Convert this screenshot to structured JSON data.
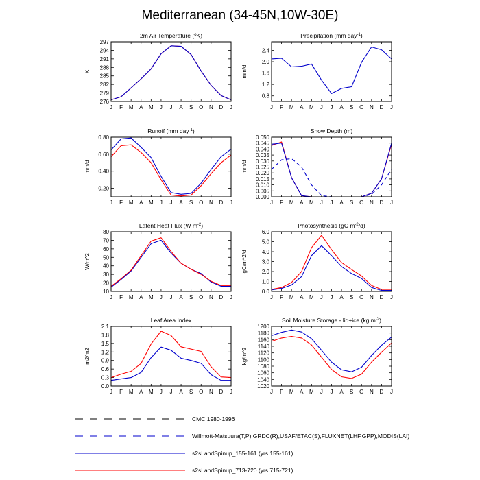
{
  "page_title": "Mediterranean (34-45N,10W-30E)",
  "legend": [
    {
      "label": "CMC 1980-1996",
      "color": "#000000",
      "dash": "long"
    },
    {
      "label": "Willmott-Matsuura(T,P),GRDC(R),USAF/ETAC(S),FLUXNET(LHF,GPP),MODIS(LAI)",
      "color": "#0000cc",
      "dash": "long"
    },
    {
      "label": "s2sLandSpinup_155-161 (yrs 155-161)",
      "color": "#0000cc",
      "dash": "solid"
    },
    {
      "label": "s2sLandSpinup_713-720 (yrs 715-721)",
      "color": "#ff0000",
      "dash": "solid"
    }
  ],
  "colors": {
    "blue": "#0000cc",
    "red": "#ff0000",
    "black": "#000000"
  },
  "chart_data": [
    {
      "type": "line",
      "title": "2m Air Temperature (°K)",
      "title_parts": [
        "2m Air Temperature (",
        "o",
        "K)"
      ],
      "ylabel": "K",
      "x": [
        "J",
        "F",
        "M",
        "A",
        "M",
        "J",
        "J",
        "A",
        "S",
        "O",
        "N",
        "D",
        "J"
      ],
      "ylim": [
        276,
        297
      ],
      "yticks": [
        276,
        279,
        282,
        285,
        288,
        291,
        294,
        297
      ],
      "series": [
        {
          "color": "#ff0000",
          "dash": "solid",
          "values": [
            276.6,
            277.7,
            280.8,
            284.0,
            287.5,
            292.8,
            295.6,
            295.4,
            292.5,
            286.7,
            281.7,
            278.1,
            276.6
          ]
        },
        {
          "color": "#0000cc",
          "dash": "solid",
          "values": [
            276.6,
            277.7,
            280.8,
            284.0,
            287.5,
            292.8,
            295.6,
            295.4,
            292.5,
            286.7,
            281.7,
            278.1,
            276.6
          ]
        }
      ]
    },
    {
      "type": "line",
      "title": "Precipitation (mm day-1)",
      "title_parts": [
        "Precipitation (mm day",
        "-1",
        ")"
      ],
      "ylabel": "mm/d",
      "x": [
        "J",
        "F",
        "M",
        "A",
        "M",
        "J",
        "J",
        "A",
        "S",
        "O",
        "N",
        "D",
        "J"
      ],
      "ylim": [
        0.6,
        2.7
      ],
      "yticks": [
        0.8,
        1.2,
        1.6,
        2.0,
        2.4
      ],
      "series": [
        {
          "color": "#0000cc",
          "dash": "solid",
          "values": [
            2.1,
            2.12,
            1.82,
            1.84,
            1.92,
            1.35,
            0.88,
            1.06,
            1.12,
            1.98,
            2.52,
            2.42,
            2.1
          ]
        }
      ]
    },
    {
      "type": "line",
      "title": "Runoff (mm day-1)",
      "title_parts": [
        "Runoff (mm day",
        "-1",
        ")"
      ],
      "ylabel": "mm/d",
      "x": [
        "J",
        "F",
        "M",
        "A",
        "M",
        "J",
        "J",
        "A",
        "S",
        "O",
        "N",
        "D",
        "J"
      ],
      "ylim": [
        0.1,
        0.8
      ],
      "yticks": [
        0.2,
        0.4,
        0.6,
        0.8
      ],
      "series": [
        {
          "color": "#0000cc",
          "dash": "solid",
          "values": [
            0.65,
            0.78,
            0.79,
            0.68,
            0.56,
            0.34,
            0.15,
            0.13,
            0.14,
            0.26,
            0.42,
            0.57,
            0.66
          ]
        },
        {
          "color": "#ff0000",
          "dash": "solid",
          "values": [
            0.57,
            0.7,
            0.71,
            0.62,
            0.5,
            0.3,
            0.12,
            0.11,
            0.12,
            0.23,
            0.37,
            0.5,
            0.59
          ]
        }
      ]
    },
    {
      "type": "line",
      "title": "Snow Depth (m)",
      "title_parts": [
        "Snow Depth (m)"
      ],
      "ylabel": "mm/d",
      "x": [
        "J",
        "F",
        "M",
        "A",
        "M",
        "J",
        "J",
        "A",
        "S",
        "O",
        "N",
        "D",
        "J"
      ],
      "ylim": [
        0.0,
        0.05
      ],
      "yticks": [
        0.0,
        0.005,
        0.01,
        0.015,
        0.02,
        0.025,
        0.03,
        0.035,
        0.04,
        0.045,
        0.05
      ],
      "series": [
        {
          "color": "#0000cc",
          "dash": "long",
          "values": [
            0.023,
            0.031,
            0.032,
            0.025,
            0.01,
            0.001,
            0.0,
            0.0,
            0.0,
            0.0,
            0.002,
            0.01,
            0.023
          ]
        },
        {
          "color": "#ff0000",
          "dash": "solid",
          "values": [
            0.043,
            0.046,
            0.016,
            0.001,
            0.0,
            0.0,
            0.0,
            0.0,
            0.0,
            0.0,
            0.003,
            0.015,
            0.044
          ]
        },
        {
          "color": "#0000cc",
          "dash": "solid",
          "values": [
            0.044,
            0.045,
            0.016,
            0.001,
            0.0,
            0.0,
            0.0,
            0.0,
            0.0,
            0.0,
            0.003,
            0.015,
            0.045
          ]
        }
      ]
    },
    {
      "type": "line",
      "title": "Latent Heat Flux (W m-2)",
      "title_parts": [
        "Latent Heat Flux (W m",
        "-2",
        ")"
      ],
      "ylabel": "W/m^2",
      "x": [
        "J",
        "F",
        "M",
        "A",
        "M",
        "J",
        "J",
        "A",
        "S",
        "O",
        "N",
        "D",
        "J"
      ],
      "ylim": [
        10,
        80
      ],
      "yticks": [
        10,
        20,
        30,
        40,
        50,
        60,
        70,
        80
      ],
      "series": [
        {
          "color": "#0000cc",
          "dash": "solid",
          "values": [
            15,
            24,
            34,
            50,
            66,
            70,
            55,
            43,
            36,
            31,
            21,
            16,
            16
          ]
        },
        {
          "color": "#ff0000",
          "dash": "solid",
          "values": [
            16,
            25,
            35,
            52,
            69,
            73,
            57,
            43,
            36,
            30,
            22,
            17,
            17
          ]
        }
      ]
    },
    {
      "type": "line",
      "title": "Photosynthesis (gC m-2/d)",
      "title_parts": [
        "Photosynthesis (gC m",
        "-2",
        "/d)"
      ],
      "ylabel": "gC/m^2/d",
      "x": [
        "J",
        "F",
        "M",
        "A",
        "M",
        "J",
        "J",
        "A",
        "S",
        "O",
        "N",
        "D",
        "J"
      ],
      "ylim": [
        0.0,
        6.0
      ],
      "yticks": [
        0.0,
        1.0,
        2.0,
        3.0,
        4.0,
        5.0,
        6.0
      ],
      "series": [
        {
          "color": "#0000cc",
          "dash": "solid",
          "values": [
            0.15,
            0.3,
            0.65,
            1.5,
            3.6,
            4.6,
            3.6,
            2.5,
            1.8,
            1.3,
            0.4,
            0.1,
            0.1
          ]
        },
        {
          "color": "#ff0000",
          "dash": "solid",
          "values": [
            0.2,
            0.4,
            0.9,
            2.0,
            4.4,
            5.65,
            4.2,
            2.9,
            2.2,
            1.55,
            0.6,
            0.2,
            0.2
          ]
        }
      ]
    },
    {
      "type": "line",
      "title": "Leaf Area Index",
      "title_parts": [
        "Leaf Area Index"
      ],
      "ylabel": "m2/m2",
      "x": [
        "J",
        "F",
        "M",
        "A",
        "M",
        "J",
        "J",
        "A",
        "S",
        "O",
        "N",
        "D",
        "J"
      ],
      "ylim": [
        0.0,
        2.1
      ],
      "yticks": [
        0.0,
        0.3,
        0.6,
        0.9,
        1.2,
        1.5,
        1.8,
        2.1
      ],
      "series": [
        {
          "color": "#0000cc",
          "dash": "solid",
          "values": [
            0.2,
            0.25,
            0.3,
            0.48,
            1.0,
            1.37,
            1.26,
            0.98,
            0.9,
            0.8,
            0.4,
            0.2,
            0.2
          ]
        },
        {
          "color": "#ff0000",
          "dash": "solid",
          "values": [
            0.3,
            0.42,
            0.52,
            0.8,
            1.48,
            1.93,
            1.78,
            1.38,
            1.3,
            1.22,
            0.68,
            0.32,
            0.3
          ]
        }
      ]
    },
    {
      "type": "line",
      "title": "Soil Moisture Storage - liq+ice (kg m-2)",
      "title_parts": [
        "Soil Moisture Storage - liq+ice (kg m",
        "-2",
        ")"
      ],
      "ylabel": "kg/m^2",
      "x": [
        "J",
        "F",
        "M",
        "A",
        "M",
        "J",
        "J",
        "A",
        "S",
        "O",
        "N",
        "D",
        "J"
      ],
      "ylim": [
        1020,
        1200
      ],
      "yticks": [
        1020,
        1040,
        1060,
        1080,
        1100,
        1120,
        1140,
        1160,
        1180,
        1200
      ],
      "series": [
        {
          "color": "#0000cc",
          "dash": "solid",
          "values": [
            1172,
            1182,
            1189,
            1183,
            1163,
            1128,
            1092,
            1069,
            1063,
            1077,
            1112,
            1143,
            1168
          ]
        },
        {
          "color": "#ff0000",
          "dash": "solid",
          "values": [
            1155,
            1165,
            1170,
            1165,
            1144,
            1107,
            1070,
            1048,
            1043,
            1056,
            1092,
            1122,
            1150
          ]
        }
      ]
    }
  ]
}
